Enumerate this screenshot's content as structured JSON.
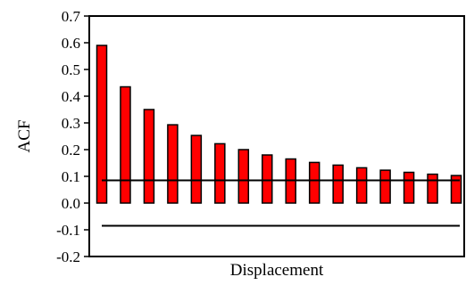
{
  "chart_data": {
    "type": "bar",
    "xlabel": "Displacement",
    "ylabel": "ACF",
    "ylim": [
      -0.2,
      0.7
    ],
    "yticks": [
      0.7,
      0.6,
      0.5,
      0.4,
      0.3,
      0.2,
      0.1,
      0.0,
      -0.1,
      -0.2
    ],
    "ytick_labels": [
      "0.7",
      "0.6",
      "0.5",
      "0.4",
      "0.3",
      "0.2",
      "0.1",
      "0.0",
      "-0.1",
      "-0.2"
    ],
    "values": [
      0.59,
      0.435,
      0.35,
      0.293,
      0.253,
      0.222,
      0.2,
      0.18,
      0.165,
      0.152,
      0.142,
      0.132,
      0.123,
      0.115,
      0.108,
      0.103
    ],
    "confidence_bounds": [
      0.085,
      -0.085
    ],
    "colors": {
      "bar_fill": "#ff0000",
      "bar_stroke": "#000000",
      "line": "#000000"
    },
    "grid": false,
    "legend": "none"
  }
}
